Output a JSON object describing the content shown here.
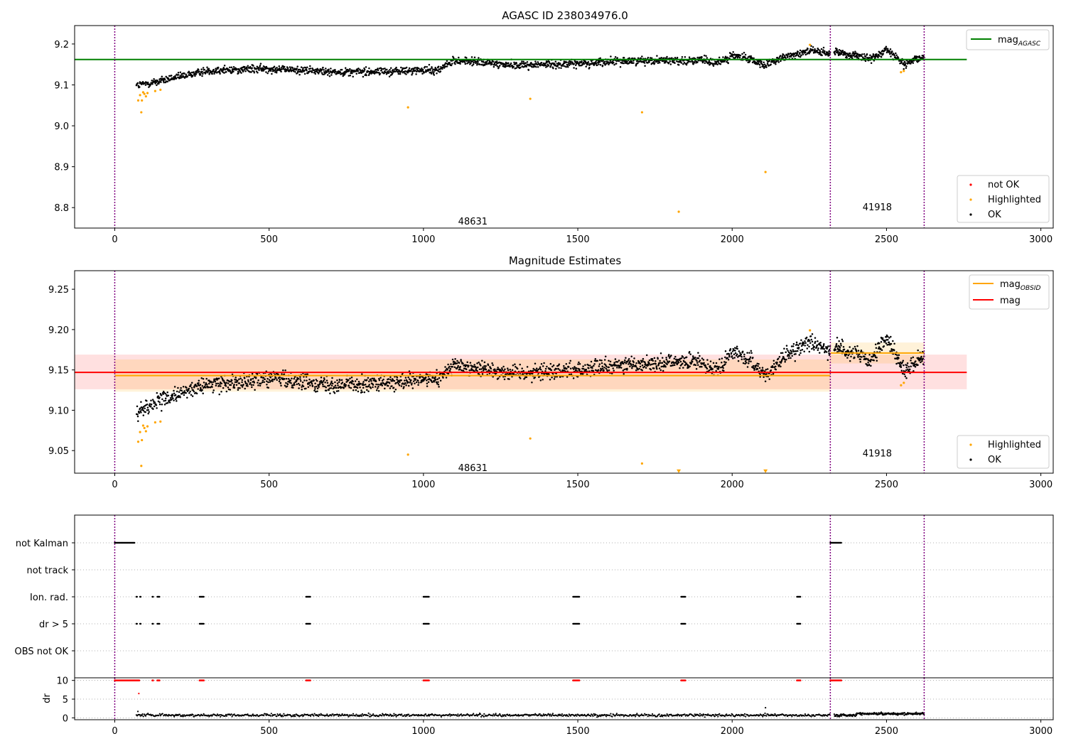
{
  "chart_data": [
    {
      "id": "p1",
      "type": "scatter",
      "title": "AGASC ID 238034976.0",
      "xlim": [
        -130,
        3040
      ],
      "ylim": [
        8.75,
        9.245
      ],
      "xticks": [
        0,
        500,
        1000,
        1500,
        2000,
        2500,
        3000
      ],
      "xtick_labels": [
        "0",
        "500",
        "1000",
        "1500",
        "2000",
        "2500",
        "3000"
      ],
      "yticks": [
        8.8,
        8.9,
        9.0,
        9.1,
        9.2
      ],
      "ytick_labels": [
        "8.8",
        "8.9",
        "9.0",
        "9.1",
        "9.2"
      ],
      "obsid_boundaries": [
        0,
        2318,
        2622
      ],
      "obsid_labels": [
        {
          "text": "48631",
          "x": 1160,
          "y": 8.767
        },
        {
          "text": "41918",
          "x": 2470,
          "y": 8.802
        }
      ],
      "reference_lines": [
        {
          "name": "mag_AGASC",
          "color": "#008000",
          "y": 9.162,
          "x_range": [
            -130,
            2760
          ]
        }
      ],
      "series": [
        {
          "name": "not OK",
          "color": "#ff0000"
        },
        {
          "name": "Highlighted",
          "color": "#ffa500"
        },
        {
          "name": "OK",
          "color": "#000000"
        }
      ],
      "highlighted_points": [
        [
          76,
          9.062
        ],
        [
          82,
          9.075
        ],
        [
          86,
          9.033
        ],
        [
          88,
          9.062
        ],
        [
          92,
          9.082
        ],
        [
          96,
          9.078
        ],
        [
          101,
          9.072
        ],
        [
          106,
          9.08
        ],
        [
          131,
          9.085
        ],
        [
          148,
          9.088
        ],
        [
          950,
          9.045
        ],
        [
          1346,
          9.066
        ],
        [
          1708,
          9.033
        ],
        [
          1827,
          8.79
        ],
        [
          2108,
          8.887
        ],
        [
          2252,
          9.198
        ],
        [
          2547,
          9.131
        ],
        [
          2556,
          9.134
        ]
      ],
      "ok_trend": {
        "x": [
          70,
          150,
          300,
          500,
          700,
          900,
          1050,
          1100,
          1300,
          1500,
          1700,
          1900,
          1950,
          2000,
          2060,
          2110,
          2160,
          2250,
          2318,
          2330,
          2400,
          2450,
          2500,
          2560,
          2622
        ],
        "y": [
          9.098,
          9.11,
          9.135,
          9.14,
          9.132,
          9.133,
          9.137,
          9.16,
          9.148,
          9.152,
          9.16,
          9.16,
          9.152,
          9.172,
          9.162,
          9.148,
          9.165,
          9.185,
          9.175,
          9.182,
          9.172,
          9.162,
          9.188,
          9.15,
          9.17
        ]
      },
      "legends": [
        {
          "position": "upper-right",
          "entries": [
            "mag_AGASC"
          ]
        },
        {
          "position": "lower-right",
          "entries": [
            "not OK",
            "Highlighted",
            "OK"
          ]
        }
      ]
    },
    {
      "id": "p2",
      "type": "scatter",
      "title": "Magnitude Estimates",
      "xlim": [
        -130,
        3040
      ],
      "ylim": [
        9.022,
        9.273
      ],
      "xticks": [
        0,
        500,
        1000,
        1500,
        2000,
        2500,
        3000
      ],
      "xtick_labels": [
        "0",
        "500",
        "1000",
        "1500",
        "2000",
        "2500",
        "3000"
      ],
      "yticks": [
        9.05,
        9.1,
        9.15,
        9.2,
        9.25
      ],
      "ytick_labels": [
        "9.05",
        "9.10",
        "9.15",
        "9.20",
        "9.25"
      ],
      "obsid_boundaries": [
        0,
        2318,
        2622
      ],
      "obsid_labels": [
        {
          "text": "48631",
          "x": 1160,
          "y": 9.029
        },
        {
          "text": "41918",
          "x": 2470,
          "y": 9.047
        }
      ],
      "bands": [
        {
          "name": "mag",
          "color": "#ff0000",
          "opacity": 0.12,
          "x_range": [
            -130,
            2760
          ],
          "y_range": [
            9.126,
            9.169
          ]
        },
        {
          "name": "mag_OBSID 48631",
          "color": "#ffa500",
          "opacity": 0.15,
          "x_range": [
            0,
            2318
          ],
          "y_range": [
            9.123,
            9.163
          ]
        },
        {
          "name": "mag_OBSID 41918",
          "color": "#ffa500",
          "opacity": 0.15,
          "x_range": [
            2318,
            2622
          ],
          "y_range": [
            9.158,
            9.184
          ]
        }
      ],
      "reference_lines": [
        {
          "name": "mag",
          "color": "#ff0000",
          "y": 9.147,
          "x_range": [
            -130,
            2760
          ]
        },
        {
          "name": "mag_OBSID 48631",
          "color": "#ffa500",
          "y": 9.143,
          "x_range": [
            0,
            2318
          ]
        },
        {
          "name": "mag_OBSID 41918",
          "color": "#ffa500",
          "y": 9.171,
          "x_range": [
            2318,
            2622
          ]
        }
      ],
      "series": [
        {
          "name": "Highlighted",
          "color": "#ffa500"
        },
        {
          "name": "OK",
          "color": "#000000"
        }
      ],
      "highlighted_points": [
        [
          76,
          9.061
        ],
        [
          82,
          9.073
        ],
        [
          86,
          9.031
        ],
        [
          88,
          9.063
        ],
        [
          92,
          9.081
        ],
        [
          96,
          9.078
        ],
        [
          101,
          9.074
        ],
        [
          106,
          9.08
        ],
        [
          131,
          9.085
        ],
        [
          148,
          9.086
        ],
        [
          950,
          9.045
        ],
        [
          1346,
          9.065
        ],
        [
          1708,
          9.034
        ],
        [
          2252,
          9.199
        ],
        [
          2547,
          9.131
        ],
        [
          2556,
          9.134
        ]
      ],
      "offscale_points": [
        [
          1827,
          9.024
        ],
        [
          2108,
          9.024
        ]
      ],
      "ok_trend": {
        "x": [
          70,
          150,
          300,
          500,
          700,
          900,
          1050,
          1100,
          1300,
          1500,
          1700,
          1900,
          1950,
          2000,
          2060,
          2110,
          2160,
          2250,
          2318,
          2330,
          2400,
          2450,
          2500,
          2560,
          2622
        ],
        "y": [
          9.098,
          9.112,
          9.132,
          9.14,
          9.132,
          9.133,
          9.14,
          9.156,
          9.146,
          9.15,
          9.158,
          9.16,
          9.15,
          9.172,
          9.162,
          9.142,
          9.165,
          9.185,
          9.175,
          9.18,
          9.17,
          9.16,
          9.19,
          9.148,
          9.168
        ]
      },
      "legends": [
        {
          "position": "upper-right",
          "entries": [
            "mag_OBSID",
            "mag"
          ]
        },
        {
          "position": "lower-right",
          "entries": [
            "Highlighted",
            "OK"
          ]
        }
      ]
    },
    {
      "id": "p3",
      "type": "scatter",
      "xlim": [
        -130,
        3040
      ],
      "categories": [
        "not Kalman",
        "not track",
        "Ion. rad.",
        "dr > 5",
        "OBS not OK"
      ],
      "obsid_boundaries": [
        0,
        2318,
        2622
      ],
      "flag_ranges": {
        "not Kalman": [
          [
            0,
            65
          ],
          [
            2318,
            2355
          ]
        ],
        "not track": [],
        "Ion. rad.": [
          [
            70,
            74
          ],
          [
            82,
            86
          ],
          [
            122,
            126
          ],
          [
            138,
            145
          ],
          [
            275,
            290
          ],
          [
            620,
            635
          ],
          [
            1000,
            1018
          ],
          [
            1485,
            1505
          ],
          [
            1835,
            1850
          ],
          [
            2210,
            2222
          ]
        ],
        "dr > 5": [
          [
            70,
            74
          ],
          [
            82,
            86
          ],
          [
            122,
            126
          ],
          [
            138,
            145
          ],
          [
            275,
            290
          ],
          [
            620,
            635
          ],
          [
            1000,
            1018
          ],
          [
            1485,
            1505
          ],
          [
            1835,
            1850
          ],
          [
            2210,
            2222
          ]
        ],
        "OBS not OK": []
      }
    },
    {
      "id": "p4",
      "type": "scatter",
      "ylabel": "dr",
      "xlim": [
        -130,
        3040
      ],
      "ylim": [
        -0.5,
        10.7
      ],
      "xticks": [
        0,
        500,
        1000,
        1500,
        2000,
        2500,
        3000
      ],
      "xtick_labels": [
        "0",
        "500",
        "1000",
        "1500",
        "2000",
        "2500",
        "3000"
      ],
      "yticks": [
        0,
        5,
        10
      ],
      "ytick_labels": [
        "0",
        "5",
        "10"
      ],
      "obsid_boundaries": [
        0,
        2318,
        2622
      ],
      "red_ranges": [
        [
          0,
          80
        ],
        [
          122,
          126
        ],
        [
          138,
          145
        ],
        [
          275,
          290
        ],
        [
          620,
          635
        ],
        [
          1000,
          1018
        ],
        [
          1485,
          1505
        ],
        [
          1835,
          1850
        ],
        [
          2210,
          2222
        ],
        [
          2318,
          2355
        ]
      ],
      "red_value": 10,
      "red_extra_points": [
        [
          78,
          6.5
        ]
      ],
      "dr_outliers": [
        [
          2108,
          2.7
        ],
        [
          75,
          1.7
        ]
      ]
    }
  ]
}
